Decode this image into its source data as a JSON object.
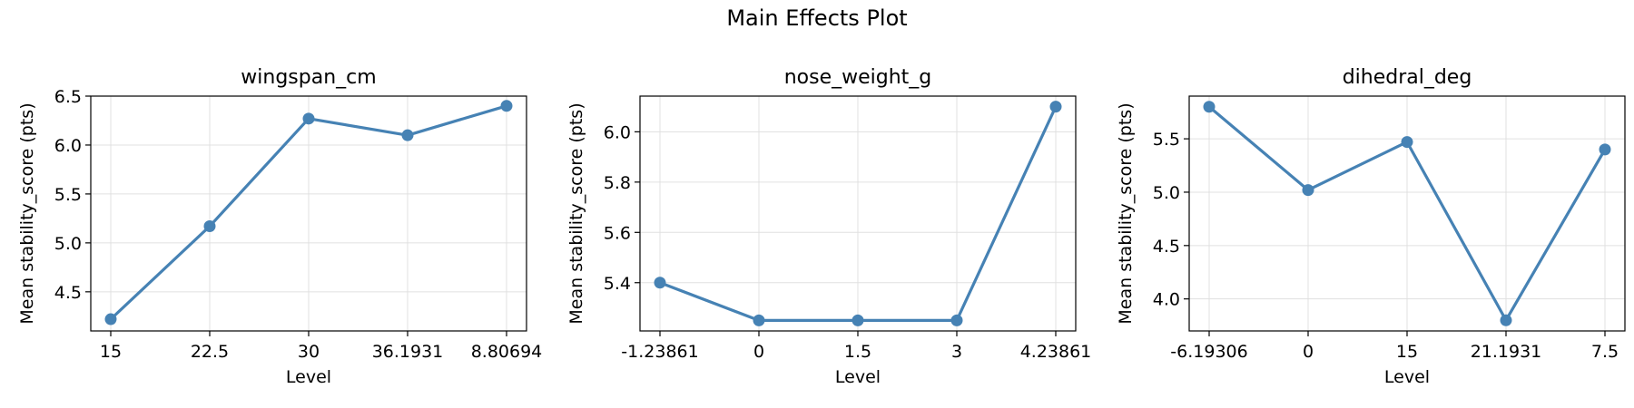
{
  "figure": {
    "title": "Main Effects Plot"
  },
  "style": {
    "line_color": "#4682b4",
    "grid_color": "#e0e0e0",
    "axis_color": "#000000"
  },
  "chart_data": [
    {
      "type": "line",
      "title": "wingspan_cm",
      "xlabel": "Level",
      "ylabel": "Mean stability_score (pts)",
      "categories": [
        "15",
        "22.5",
        "30",
        "36.1931",
        "8.80694"
      ],
      "values": [
        4.22,
        5.17,
        6.27,
        6.1,
        6.4
      ],
      "ylim": [
        4.1,
        6.5
      ],
      "yticks": [
        4.5,
        5.0,
        5.5,
        6.0,
        6.5
      ],
      "ytick_labels": [
        "4.5",
        "5.0",
        "5.5",
        "6.0",
        "6.5"
      ],
      "grid": true
    },
    {
      "type": "line",
      "title": "nose_weight_g",
      "xlabel": "Level",
      "ylabel": "Mean stability_score (pts)",
      "categories": [
        "-1.23861",
        "0",
        "1.5",
        "3",
        "4.23861"
      ],
      "values": [
        5.4,
        5.25,
        5.25,
        5.25,
        6.1
      ],
      "ylim": [
        5.208,
        6.142
      ],
      "yticks": [
        5.4,
        5.6,
        5.8,
        6.0
      ],
      "ytick_labels": [
        "5.4",
        "5.6",
        "5.8",
        "6.0"
      ],
      "grid": true
    },
    {
      "type": "line",
      "title": "dihedral_deg",
      "xlabel": "Level",
      "ylabel": "Mean stability_score (pts)",
      "categories": [
        "-6.19306",
        "0",
        "15",
        "21.1931",
        "7.5"
      ],
      "values": [
        5.8,
        5.02,
        5.47,
        3.8,
        5.4
      ],
      "ylim": [
        3.7,
        5.9
      ],
      "yticks": [
        4.0,
        4.5,
        5.0,
        5.5
      ],
      "ytick_labels": [
        "4.0",
        "4.5",
        "5.0",
        "5.5"
      ],
      "grid": true
    }
  ]
}
